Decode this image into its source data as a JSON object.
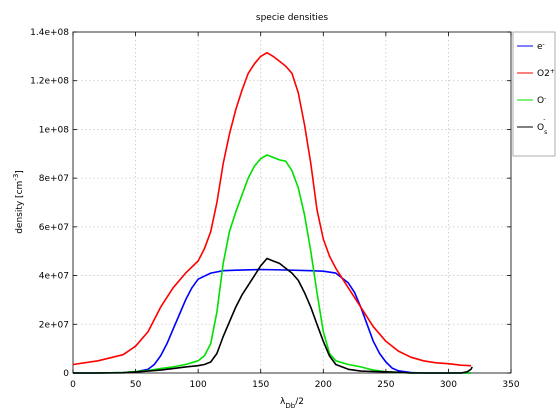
{
  "chart_data": {
    "type": "line",
    "title": "specie densities",
    "xlabel": "λ_Db/2",
    "ylabel": "density [cm^-3]",
    "xlim": [
      0,
      350
    ],
    "ylim": [
      0,
      140000000
    ],
    "xticks": [
      "0",
      "50",
      "100",
      "150",
      "200",
      "250",
      "300",
      "350"
    ],
    "yticks": [
      "0",
      "2e+07",
      "4e+07",
      "6e+07",
      "8e+07",
      "1e+08",
      "1.2e+08",
      "1.4e+08"
    ],
    "grid": true,
    "legend_position": "outside-right-top",
    "series": [
      {
        "name": "e-",
        "color": "#0000ff",
        "x": [
          0,
          20,
          40,
          50,
          60,
          65,
          70,
          75,
          80,
          85,
          90,
          95,
          100,
          110,
          120,
          130,
          150,
          170,
          190,
          200,
          210,
          220,
          225,
          230,
          235,
          240,
          245,
          250,
          255,
          260,
          270,
          280,
          300,
          318
        ],
        "y": [
          0,
          0,
          200000,
          500000,
          1500000,
          3500000,
          7000000,
          12000000,
          18000000,
          24000000,
          30000000,
          35000000,
          38500000,
          41000000,
          42000000,
          42200000,
          42500000,
          42300000,
          42000000,
          41800000,
          41000000,
          37000000,
          33000000,
          27000000,
          20000000,
          13000000,
          8000000,
          4500000,
          2000000,
          900000,
          200000,
          0,
          0,
          0
        ]
      },
      {
        "name": "O2+",
        "color": "#ff0000",
        "x": [
          0,
          20,
          40,
          50,
          60,
          70,
          80,
          90,
          100,
          105,
          110,
          115,
          120,
          125,
          130,
          135,
          140,
          145,
          150,
          155,
          160,
          165,
          170,
          175,
          180,
          185,
          190,
          195,
          200,
          205,
          210,
          220,
          230,
          240,
          250,
          260,
          270,
          280,
          290,
          300,
          310,
          318
        ],
        "y": [
          3500000,
          5000000,
          7500000,
          11000000,
          17000000,
          27000000,
          35000000,
          41000000,
          46000000,
          51000000,
          58000000,
          70000000,
          86000000,
          98000000,
          108000000,
          116000000,
          123000000,
          127000000,
          130000000,
          131500000,
          130000000,
          128000000,
          126000000,
          123000000,
          115000000,
          102000000,
          86000000,
          67000000,
          55000000,
          48000000,
          43000000,
          35000000,
          27000000,
          19000000,
          13000000,
          9000000,
          6500000,
          5000000,
          4200000,
          3800000,
          3200000,
          3000000
        ]
      },
      {
        "name": "O-",
        "color": "#00e000",
        "x": [
          0,
          20,
          40,
          60,
          70,
          80,
          90,
          100,
          105,
          110,
          115,
          120,
          125,
          130,
          135,
          140,
          145,
          150,
          155,
          160,
          165,
          170,
          175,
          180,
          185,
          190,
          195,
          200,
          205,
          210,
          220,
          230,
          240,
          250,
          260,
          270,
          318
        ],
        "y": [
          0,
          0,
          200000,
          1000000,
          1800000,
          2500000,
          3500000,
          5000000,
          7000000,
          12000000,
          25000000,
          45000000,
          58000000,
          66000000,
          73000000,
          80000000,
          85000000,
          88000000,
          89500000,
          88500000,
          87500000,
          87000000,
          83000000,
          76000000,
          65000000,
          50000000,
          33000000,
          17000000,
          8000000,
          5000000,
          3500000,
          2500000,
          1200000,
          500000,
          200000,
          0,
          0
        ]
      },
      {
        "name": "O-s",
        "color": "#000000",
        "x": [
          0,
          20,
          40,
          60,
          70,
          80,
          90,
          100,
          105,
          110,
          115,
          120,
          125,
          130,
          135,
          140,
          145,
          150,
          155,
          160,
          165,
          170,
          175,
          180,
          185,
          190,
          195,
          200,
          205,
          210,
          220,
          230,
          240,
          250,
          260,
          270,
          300,
          310,
          315,
          318,
          319
        ],
        "y": [
          0,
          0,
          100000,
          800000,
          1200000,
          1800000,
          2500000,
          3000000,
          3500000,
          4500000,
          8000000,
          15000000,
          21000000,
          27000000,
          32000000,
          36000000,
          40000000,
          44000000,
          47000000,
          46000000,
          45000000,
          43000000,
          41000000,
          38000000,
          33000000,
          27000000,
          20000000,
          13000000,
          7000000,
          3500000,
          1500000,
          800000,
          600000,
          500000,
          300000,
          0,
          0,
          0,
          500000,
          1500000,
          2500000
        ]
      }
    ]
  },
  "legend": {
    "entries": [
      {
        "base": "e",
        "sup": "-",
        "sub": ""
      },
      {
        "base": "O2",
        "sup": "+",
        "sub": ""
      },
      {
        "base": "O",
        "sup": "-",
        "sub": ""
      },
      {
        "base": "O",
        "sup": "-",
        "sub": "s"
      }
    ]
  }
}
